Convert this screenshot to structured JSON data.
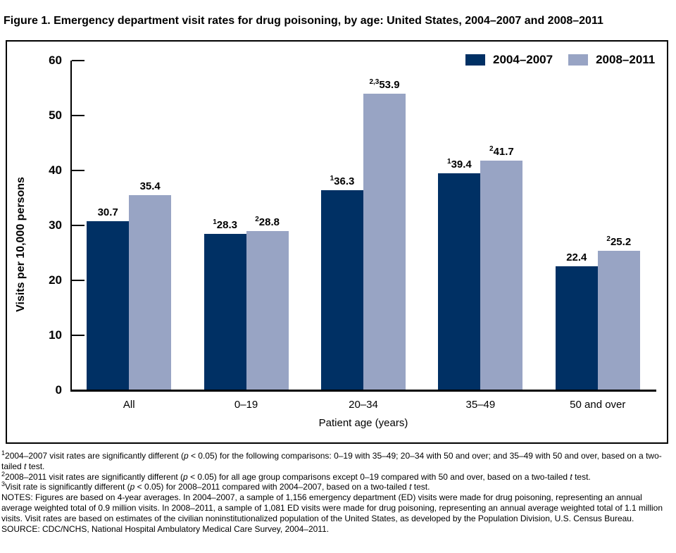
{
  "title": "Figure 1. Emergency department visit rates for drug poisoning, by age: United States, 2004–2007 and 2008–2011",
  "colors": {
    "series_2004_2007": "#003064",
    "series_2008_2011": "#98A4C4",
    "axis": "#000000",
    "text": "#000000",
    "background": "#FFFFFF"
  },
  "chart_data": {
    "type": "bar",
    "categories": [
      "All",
      "0–19",
      "20–34",
      "35–49",
      "50 and over"
    ],
    "series": [
      {
        "name": "2004–2007",
        "color": "#003064",
        "values": [
          30.7,
          28.3,
          36.3,
          39.4,
          22.4
        ],
        "label_sups": [
          "",
          "1",
          "1",
          "1",
          ""
        ]
      },
      {
        "name": "2008–2011",
        "color": "#98A4C4",
        "values": [
          35.4,
          28.8,
          53.9,
          41.7,
          25.2
        ],
        "label_sups": [
          "",
          "2",
          "2,3",
          "2",
          "2"
        ]
      }
    ],
    "xlabel": "Patient age (years)",
    "ylabel": "Visits per 10,000 persons",
    "ylim": [
      0,
      60
    ],
    "yticks": [
      0,
      10,
      20,
      30,
      40,
      50,
      60
    ],
    "grid": false,
    "legend_position": "top-right"
  },
  "footnotes": [
    {
      "name": "footnote-1",
      "segments": [
        {
          "text": "1",
          "sup": true
        },
        {
          "text": "2004–2007 visit rates are significantly different ("
        },
        {
          "text": "p",
          "italic": true
        },
        {
          "text": " < 0.05) for the following comparisons: 0–19 with 35–49; 20–34 with 50 and over; and 35–49 with 50 and over, based on a two-tailed "
        },
        {
          "text": "t",
          "italic": true
        },
        {
          "text": " test."
        }
      ]
    },
    {
      "name": "footnote-2",
      "segments": [
        {
          "text": "2",
          "sup": true
        },
        {
          "text": "2008–2011 visit rates are significantly different ("
        },
        {
          "text": "p",
          "italic": true
        },
        {
          "text": " < 0.05) for all age group comparisons except 0–19 compared with 50 and over, based on a two-tailed "
        },
        {
          "text": "t",
          "italic": true
        },
        {
          "text": " test."
        }
      ]
    },
    {
      "name": "footnote-3",
      "segments": [
        {
          "text": "3",
          "sup": true
        },
        {
          "text": "Visit rate is significantly different ("
        },
        {
          "text": "p",
          "italic": true
        },
        {
          "text": " < 0.05) for 2008–2011 compared with 2004–2007, based on a two-tailed "
        },
        {
          "text": "t",
          "italic": true
        },
        {
          "text": " test."
        }
      ]
    },
    {
      "name": "notes",
      "segments": [
        {
          "text": "NOTES: Figures are based on 4-year averages. In 2004–2007, a sample of 1,156 emergency department (ED) visits were made for drug poisoning, representing an annual average weighted total of 0.9 million visits. In 2008–2011, a sample of 1,081 ED visits were made for drug poisoning, representing an annual average weighted total of 1.1 million visits. Visit rates are based on estimates of the civilian noninstitutionalized population of the United States, as developed by the Population Division, U.S. Census Bureau."
        }
      ]
    },
    {
      "name": "source",
      "segments": [
        {
          "text": "SOURCE: CDC/NCHS, National Hospital Ambulatory Medical Care Survey, 2004–2011."
        }
      ]
    }
  ]
}
